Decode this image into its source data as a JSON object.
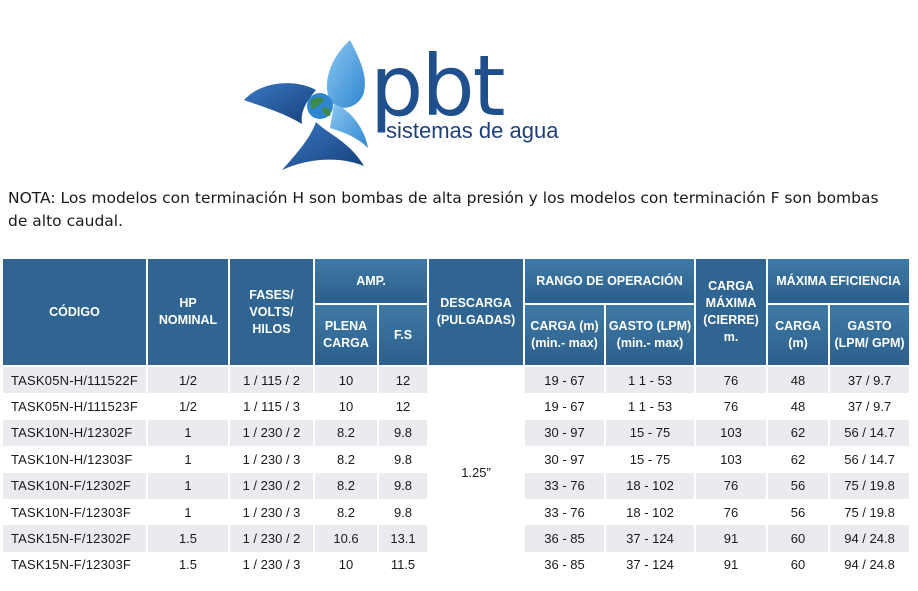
{
  "logo": {
    "brand": "pbt",
    "tagline": "sistemas de agua",
    "colors": {
      "dark_blue": "#1f4f8c",
      "light_blue": "#4aa3e0",
      "globe_green": "#3d8a4a"
    }
  },
  "note": "NOTA: Los modelos con terminación H son bombas de alta presión y los modelos con terminación F son bombas de alto caudal.",
  "table": {
    "header_color": "#2f6590",
    "headers": {
      "codigo": "CÓDIGO",
      "hp": "HP NOMINAL",
      "fases": "FASES/ VOLTS/ HILOS",
      "amp": "AMP.",
      "amp_plena": "PLENA CARGA",
      "amp_fs": "F.S",
      "descarga": "DESCARGA (PULGADAS)",
      "rango": "RANGO DE OPERACIÓN",
      "rango_carga": "CARGA (m) (min.- max)",
      "rango_gasto": "GASTO (LPM) (min.- max)",
      "carga_max": "CARGA MÁXIMA (CIERRE) m.",
      "max_eff": "MÁXIMA EFICIENCIA",
      "eff_carga": "CARGA (m)",
      "eff_gasto": "GASTO (LPM/ GPM)"
    },
    "descarga_value": "1.25”",
    "rows": [
      {
        "codigo": "TASK05N-H/111522F",
        "hp": "1/2",
        "fases": "1 / 115 / 2",
        "plena": "10",
        "fs": "12",
        "rango_carga": "19 - 67",
        "rango_gasto": "1 1 - 53",
        "carga_max": "76",
        "eff_carga": "48",
        "eff_gasto": "37 / 9.7"
      },
      {
        "codigo": "TASK05N-H/111523F",
        "hp": "1/2",
        "fases": "1 / 115 / 3",
        "plena": "10",
        "fs": "12",
        "rango_carga": "19 - 67",
        "rango_gasto": "1 1 - 53",
        "carga_max": "76",
        "eff_carga": "48",
        "eff_gasto": "37 / 9.7"
      },
      {
        "codigo": "TASK10N-H/12302F",
        "hp": "1",
        "fases": "1 / 230 / 2",
        "plena": "8.2",
        "fs": "9.8",
        "rango_carga": "30 - 97",
        "rango_gasto": "15 - 75",
        "carga_max": "103",
        "eff_carga": "62",
        "eff_gasto": "56 / 14.7"
      },
      {
        "codigo": "TASK10N-H/12303F",
        "hp": "1",
        "fases": "1 / 230 / 3",
        "plena": "8.2",
        "fs": "9.8",
        "rango_carga": "30 - 97",
        "rango_gasto": "15 - 75",
        "carga_max": "103",
        "eff_carga": "62",
        "eff_gasto": "56 / 14.7"
      },
      {
        "codigo": "TASK10N-F/12302F",
        "hp": "1",
        "fases": "1 / 230 / 2",
        "plena": "8.2",
        "fs": "9.8",
        "rango_carga": "33 - 76",
        "rango_gasto": "18 - 102",
        "carga_max": "76",
        "eff_carga": "56",
        "eff_gasto": "75 / 19.8"
      },
      {
        "codigo": "TASK10N-F/12303F",
        "hp": "1",
        "fases": "1 / 230 / 3",
        "plena": "8.2",
        "fs": "9.8",
        "rango_carga": "33 - 76",
        "rango_gasto": "18 - 102",
        "carga_max": "76",
        "eff_carga": "56",
        "eff_gasto": "75 / 19.8"
      },
      {
        "codigo": "TASK15N-F/12302F",
        "hp": "1.5",
        "fases": "1 / 230 / 2",
        "plena": "10.6",
        "fs": "13.1",
        "rango_carga": "36 - 85",
        "rango_gasto": "37 - 124",
        "carga_max": "91",
        "eff_carga": "60",
        "eff_gasto": "94 / 24.8"
      },
      {
        "codigo": "TASK15N-F/12303F",
        "hp": "1.5",
        "fases": "1 / 230 / 3",
        "plena": "10",
        "fs": "11.5",
        "rango_carga": "36 - 85",
        "rango_gasto": "37 - 124",
        "carga_max": "91",
        "eff_carga": "60",
        "eff_gasto": "94 / 24.8"
      }
    ]
  }
}
